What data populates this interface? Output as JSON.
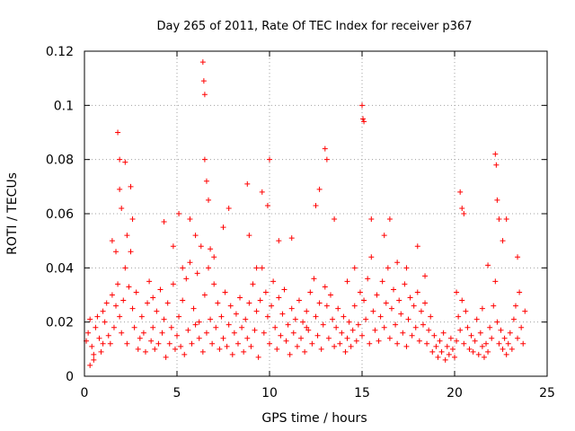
{
  "chart_data": {
    "type": "scatter",
    "title": "Day 265 of 2011, Rate Of TEC Index for receiver p367",
    "xlabel": "GPS time / hours",
    "ylabel": "ROTI / TECUs",
    "xlim": [
      0,
      25
    ],
    "ylim": [
      0,
      0.12
    ],
    "x_ticks": [
      "0",
      "5",
      "10",
      "15",
      "20",
      "25"
    ],
    "y_ticks": [
      "0",
      "0.02",
      "0.04",
      "0.06",
      "0.08",
      "0.1",
      "0.12"
    ],
    "grid": true,
    "legend": "none",
    "marker": "+",
    "color": "#ff0000",
    "series": [
      {
        "points": [
          [
            0.1,
            0.013
          ],
          [
            0.2,
            0.016
          ],
          [
            0.3,
            0.021
          ],
          [
            0.4,
            0.011
          ],
          [
            0.5,
            0.006
          ],
          [
            0.6,
            0.018
          ],
          [
            0.7,
            0.022
          ],
          [
            0.8,
            0.014
          ],
          [
            0.9,
            0.009
          ],
          [
            1.0,
            0.024
          ],
          [
            1.1,
            0.02
          ],
          [
            1.2,
            0.027
          ],
          [
            1.3,
            0.015
          ],
          [
            1.4,
            0.012
          ],
          [
            1.5,
            0.03
          ],
          [
            1.6,
            0.018
          ],
          [
            1.7,
            0.026
          ],
          [
            1.8,
            0.034
          ],
          [
            1.9,
            0.022
          ],
          [
            2.0,
            0.016
          ],
          [
            2.1,
            0.028
          ],
          [
            2.2,
            0.04
          ],
          [
            2.3,
            0.012
          ],
          [
            2.4,
            0.033
          ],
          [
            2.5,
            0.046
          ],
          [
            2.6,
            0.025
          ],
          [
            2.7,
            0.018
          ],
          [
            2.8,
            0.031
          ],
          [
            2.9,
            0.01
          ],
          [
            3.0,
            0.014
          ],
          [
            3.1,
            0.022
          ],
          [
            3.2,
            0.016
          ],
          [
            3.3,
            0.009
          ],
          [
            3.4,
            0.027
          ],
          [
            3.5,
            0.035
          ],
          [
            3.6,
            0.013
          ],
          [
            3.7,
            0.018
          ],
          [
            3.8,
            0.01
          ],
          [
            3.9,
            0.024
          ],
          [
            4.0,
            0.012
          ],
          [
            4.1,
            0.032
          ],
          [
            4.2,
            0.016
          ],
          [
            4.3,
            0.021
          ],
          [
            4.4,
            0.007
          ],
          [
            4.5,
            0.027
          ],
          [
            4.6,
            0.012
          ],
          [
            4.7,
            0.018
          ],
          [
            4.8,
            0.034
          ],
          [
            4.9,
            0.01
          ],
          [
            5.0,
            0.015
          ],
          [
            5.1,
            0.022
          ],
          [
            5.2,
            0.011
          ],
          [
            5.3,
            0.028
          ],
          [
            5.4,
            0.008
          ],
          [
            5.5,
            0.036
          ],
          [
            5.6,
            0.017
          ],
          [
            5.7,
            0.042
          ],
          [
            5.8,
            0.012
          ],
          [
            5.9,
            0.025
          ],
          [
            6.0,
            0.019
          ],
          [
            6.1,
            0.038
          ],
          [
            6.2,
            0.014
          ],
          [
            6.3,
            0.048
          ],
          [
            6.4,
            0.009
          ],
          [
            6.5,
            0.03
          ],
          [
            6.6,
            0.016
          ],
          [
            6.7,
            0.04
          ],
          [
            6.8,
            0.021
          ],
          [
            6.9,
            0.012
          ],
          [
            7.0,
            0.034
          ],
          [
            7.1,
            0.018
          ],
          [
            7.2,
            0.027
          ],
          [
            7.3,
            0.01
          ],
          [
            7.4,
            0.022
          ],
          [
            7.5,
            0.014
          ],
          [
            7.6,
            0.031
          ],
          [
            7.7,
            0.011
          ],
          [
            7.8,
            0.019
          ],
          [
            7.9,
            0.026
          ],
          [
            8.0,
            0.008
          ],
          [
            8.1,
            0.016
          ],
          [
            8.2,
            0.023
          ],
          [
            8.3,
            0.012
          ],
          [
            8.4,
            0.029
          ],
          [
            8.5,
            0.018
          ],
          [
            8.6,
            0.009
          ],
          [
            8.7,
            0.021
          ],
          [
            8.8,
            0.014
          ],
          [
            8.9,
            0.027
          ],
          [
            9.0,
            0.011
          ],
          [
            9.1,
            0.034
          ],
          [
            9.2,
            0.017
          ],
          [
            9.3,
            0.024
          ],
          [
            9.4,
            0.007
          ],
          [
            9.5,
            0.028
          ],
          [
            9.6,
            0.04
          ],
          [
            9.7,
            0.016
          ],
          [
            9.8,
            0.031
          ],
          [
            9.9,
            0.022
          ],
          [
            10.0,
            0.012
          ],
          [
            10.1,
            0.026
          ],
          [
            10.2,
            0.035
          ],
          [
            10.3,
            0.018
          ],
          [
            10.4,
            0.01
          ],
          [
            10.5,
            0.029
          ],
          [
            10.6,
            0.015
          ],
          [
            10.7,
            0.023
          ],
          [
            10.8,
            0.032
          ],
          [
            10.9,
            0.013
          ],
          [
            11.0,
            0.019
          ],
          [
            11.1,
            0.008
          ],
          [
            11.2,
            0.025
          ],
          [
            11.3,
            0.016
          ],
          [
            11.4,
            0.021
          ],
          [
            11.5,
            0.011
          ],
          [
            11.6,
            0.028
          ],
          [
            11.7,
            0.014
          ],
          [
            11.8,
            0.02
          ],
          [
            11.9,
            0.009
          ],
          [
            12.0,
            0.024
          ],
          [
            12.1,
            0.017
          ],
          [
            12.2,
            0.031
          ],
          [
            12.3,
            0.012
          ],
          [
            12.4,
            0.036
          ],
          [
            12.5,
            0.022
          ],
          [
            12.6,
            0.015
          ],
          [
            12.7,
            0.027
          ],
          [
            12.8,
            0.01
          ],
          [
            12.9,
            0.019
          ],
          [
            13.0,
            0.033
          ],
          [
            13.1,
            0.026
          ],
          [
            13.2,
            0.014
          ],
          [
            13.3,
            0.03
          ],
          [
            13.4,
            0.021
          ],
          [
            13.5,
            0.011
          ],
          [
            13.6,
            0.018
          ],
          [
            13.7,
            0.025
          ],
          [
            13.8,
            0.012
          ],
          [
            13.9,
            0.016
          ],
          [
            14.0,
            0.022
          ],
          [
            14.1,
            0.009
          ],
          [
            14.2,
            0.014
          ],
          [
            14.3,
            0.02
          ],
          [
            14.4,
            0.011
          ],
          [
            14.5,
            0.017
          ],
          [
            14.6,
            0.026
          ],
          [
            14.7,
            0.013
          ],
          [
            14.8,
            0.019
          ],
          [
            14.9,
            0.031
          ],
          [
            15.0,
            0.015
          ],
          [
            15.1,
            0.028
          ],
          [
            15.2,
            0.021
          ],
          [
            15.3,
            0.036
          ],
          [
            15.4,
            0.012
          ],
          [
            15.5,
            0.044
          ],
          [
            15.6,
            0.024
          ],
          [
            15.7,
            0.017
          ],
          [
            15.8,
            0.03
          ],
          [
            15.9,
            0.013
          ],
          [
            16.0,
            0.022
          ],
          [
            16.1,
            0.035
          ],
          [
            16.2,
            0.018
          ],
          [
            16.3,
            0.027
          ],
          [
            16.4,
            0.04
          ],
          [
            16.5,
            0.014
          ],
          [
            16.6,
            0.025
          ],
          [
            16.7,
            0.032
          ],
          [
            16.8,
            0.019
          ],
          [
            16.9,
            0.012
          ],
          [
            17.0,
            0.028
          ],
          [
            17.1,
            0.023
          ],
          [
            17.2,
            0.016
          ],
          [
            17.3,
            0.034
          ],
          [
            17.4,
            0.011
          ],
          [
            17.5,
            0.021
          ],
          [
            17.6,
            0.029
          ],
          [
            17.7,
            0.015
          ],
          [
            17.8,
            0.026
          ],
          [
            17.9,
            0.018
          ],
          [
            18.0,
            0.031
          ],
          [
            18.1,
            0.013
          ],
          [
            18.2,
            0.024
          ],
          [
            18.3,
            0.019
          ],
          [
            18.4,
            0.027
          ],
          [
            18.5,
            0.012
          ],
          [
            18.6,
            0.017
          ],
          [
            18.7,
            0.022
          ],
          [
            18.8,
            0.009
          ],
          [
            18.9,
            0.015
          ],
          [
            19.0,
            0.011
          ],
          [
            19.1,
            0.007
          ],
          [
            19.2,
            0.013
          ],
          [
            19.3,
            0.009
          ],
          [
            19.4,
            0.016
          ],
          [
            19.5,
            0.006
          ],
          [
            19.6,
            0.011
          ],
          [
            19.7,
            0.008
          ],
          [
            19.8,
            0.014
          ],
          [
            19.9,
            0.01
          ],
          [
            20.0,
            0.007
          ],
          [
            20.1,
            0.013
          ],
          [
            20.2,
            0.022
          ],
          [
            20.3,
            0.017
          ],
          [
            20.4,
            0.028
          ],
          [
            20.5,
            0.012
          ],
          [
            20.6,
            0.024
          ],
          [
            20.7,
            0.018
          ],
          [
            20.8,
            0.01
          ],
          [
            20.9,
            0.015
          ],
          [
            21.0,
            0.009
          ],
          [
            21.1,
            0.013
          ],
          [
            21.2,
            0.021
          ],
          [
            21.3,
            0.008
          ],
          [
            21.4,
            0.016
          ],
          [
            21.5,
            0.011
          ],
          [
            21.6,
            0.007
          ],
          [
            21.7,
            0.012
          ],
          [
            21.8,
            0.009
          ],
          [
            21.9,
            0.018
          ],
          [
            22.0,
            0.014
          ],
          [
            22.1,
            0.026
          ],
          [
            22.2,
            0.035
          ],
          [
            22.3,
            0.02
          ],
          [
            22.4,
            0.012
          ],
          [
            22.5,
            0.017
          ],
          [
            22.6,
            0.01
          ],
          [
            22.7,
            0.014
          ],
          [
            22.8,
            0.008
          ],
          [
            22.9,
            0.012
          ],
          [
            23.0,
            0.016
          ],
          [
            23.1,
            0.01
          ],
          [
            23.2,
            0.021
          ],
          [
            23.3,
            0.026
          ],
          [
            23.4,
            0.014
          ],
          [
            23.5,
            0.031
          ],
          [
            23.6,
            0.018
          ],
          [
            23.7,
            0.012
          ],
          [
            23.8,
            0.024
          ],
          [
            0.3,
            0.004
          ],
          [
            0.5,
            0.008
          ],
          [
            1.0,
            0.012
          ],
          [
            1.9,
            0.069
          ],
          [
            2.2,
            0.079
          ],
          [
            2.5,
            0.07
          ],
          [
            2.6,
            0.058
          ],
          [
            1.7,
            0.046
          ],
          [
            1.5,
            0.05
          ],
          [
            2.3,
            0.052
          ],
          [
            1.8,
            0.09
          ],
          [
            1.9,
            0.08
          ],
          [
            2.0,
            0.062
          ],
          [
            4.3,
            0.057
          ],
          [
            4.8,
            0.048
          ],
          [
            5.1,
            0.06
          ],
          [
            5.3,
            0.04
          ],
          [
            5.7,
            0.058
          ],
          [
            6.0,
            0.052
          ],
          [
            6.4,
            0.116
          ],
          [
            6.45,
            0.109
          ],
          [
            6.5,
            0.104
          ],
          [
            6.5,
            0.08
          ],
          [
            6.6,
            0.072
          ],
          [
            6.7,
            0.065
          ],
          [
            6.8,
            0.047
          ],
          [
            7.5,
            0.055
          ],
          [
            7.8,
            0.062
          ],
          [
            8.8,
            0.071
          ],
          [
            8.9,
            0.052
          ],
          [
            9.6,
            0.068
          ],
          [
            9.9,
            0.063
          ],
          [
            10.0,
            0.08
          ],
          [
            10.5,
            0.05
          ],
          [
            11.2,
            0.051
          ],
          [
            12.5,
            0.063
          ],
          [
            12.7,
            0.069
          ],
          [
            13.0,
            0.084
          ],
          [
            13.1,
            0.08
          ],
          [
            13.5,
            0.058
          ],
          [
            14.6,
            0.04
          ],
          [
            15.0,
            0.1
          ],
          [
            15.05,
            0.095
          ],
          [
            15.1,
            0.094
          ],
          [
            15.5,
            0.058
          ],
          [
            16.2,
            0.052
          ],
          [
            16.5,
            0.058
          ],
          [
            18.0,
            0.048
          ],
          [
            17.4,
            0.04
          ],
          [
            20.3,
            0.068
          ],
          [
            20.4,
            0.062
          ],
          [
            20.5,
            0.06
          ],
          [
            22.2,
            0.082
          ],
          [
            22.25,
            0.078
          ],
          [
            22.3,
            0.065
          ],
          [
            22.4,
            0.058
          ],
          [
            22.6,
            0.05
          ],
          [
            22.8,
            0.058
          ],
          [
            23.4,
            0.044
          ],
          [
            21.8,
            0.041
          ],
          [
            12.0,
            0.018
          ],
          [
            6.2,
            0.02
          ],
          [
            3.7,
            0.029
          ],
          [
            7.0,
            0.044
          ],
          [
            9.3,
            0.04
          ],
          [
            14.2,
            0.035
          ],
          [
            16.9,
            0.042
          ],
          [
            18.4,
            0.037
          ],
          [
            20.1,
            0.031
          ],
          [
            21.5,
            0.025
          ]
        ]
      }
    ]
  }
}
